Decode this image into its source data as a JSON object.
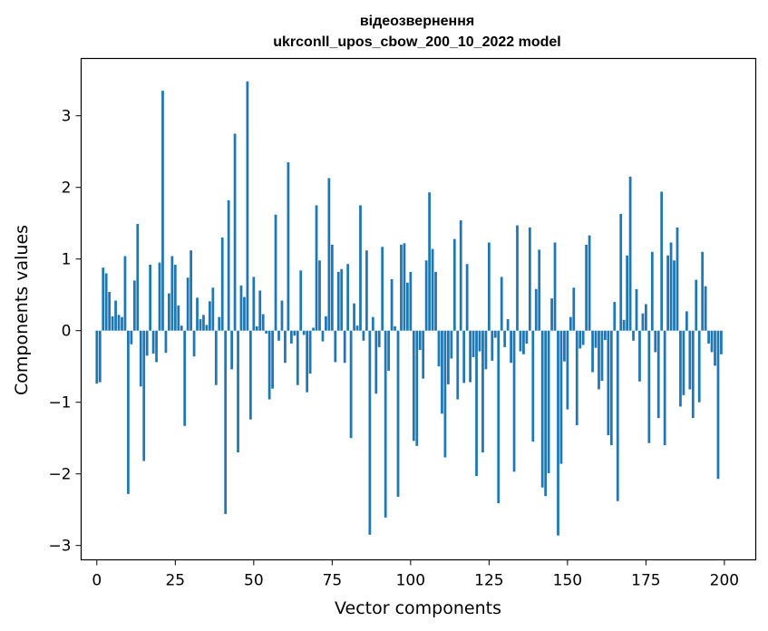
{
  "chart_data": {
    "type": "bar",
    "title_line1": "відеозвернення",
    "title_line2": "ukrconll_upos_cbow_200_10_2022 model",
    "xlabel": "Vector components",
    "ylabel": "Components values",
    "xlim": [
      -5,
      210
    ],
    "ylim": [
      -3.2,
      3.8
    ],
    "xticks": [
      0,
      25,
      50,
      75,
      100,
      125,
      150,
      175,
      200
    ],
    "yticks": [
      -3,
      -2,
      -1,
      0,
      1,
      2,
      3
    ],
    "grid": false,
    "legend": "none",
    "bar_color": "#1f77b4",
    "values": [
      -0.74,
      -0.72,
      0.88,
      0.8,
      0.54,
      0.2,
      0.42,
      0.22,
      0.19,
      1.04,
      -2.28,
      -0.19,
      0.7,
      1.49,
      -0.78,
      -1.82,
      -0.35,
      0.92,
      -0.32,
      -0.44,
      0.95,
      3.35,
      -0.31,
      0.52,
      1.04,
      0.92,
      0.35,
      0.07,
      -1.33,
      0.74,
      1.12,
      -0.36,
      0.46,
      0.16,
      0.22,
      0.08,
      0.41,
      0.6,
      -0.76,
      0.19,
      1.3,
      -2.56,
      1.82,
      -0.54,
      2.75,
      -1.7,
      0.63,
      0.47,
      3.48,
      -1.24,
      0.75,
      0.06,
      0.56,
      0.23,
      -0.04,
      -0.96,
      -0.81,
      1.62,
      -0.14,
      0.42,
      -0.45,
      2.35,
      -0.18,
      -0.07,
      -0.76,
      0.84,
      -0.06,
      -0.86,
      -0.6,
      0.04,
      1.75,
      0.98,
      -0.15,
      0.2,
      2.13,
      1.2,
      -0.44,
      0.82,
      0.86,
      -0.45,
      0.93,
      -1.5,
      0.38,
      0.07,
      1.75,
      -0.14,
      1.12,
      -2.85,
      0.19,
      -0.88,
      -0.23,
      1.17,
      -2.61,
      -0.56,
      0.72,
      0.06,
      -2.32,
      1.2,
      1.22,
      0.67,
      0.82,
      -1.54,
      -1.61,
      -0.27,
      -0.67,
      0.98,
      1.93,
      1.14,
      0.82,
      -0.5,
      -1.16,
      -1.77,
      -0.75,
      -0.39,
      1.28,
      -0.96,
      1.54,
      -0.73,
      0.93,
      -0.72,
      -0.37,
      -2.03,
      -0.29,
      -1.7,
      -0.54,
      1.23,
      -0.42,
      -0.1,
      -2.41,
      0.75,
      -0.23,
      0.16,
      -0.45,
      -1.97,
      1.47,
      -0.29,
      -0.33,
      -0.18,
      1.44,
      -1.55,
      0.58,
      1.13,
      -2.19,
      -2.31,
      -1.99,
      0.45,
      1.23,
      -2.86,
      -1.86,
      -0.43,
      -1.1,
      0.19,
      0.6,
      -1.32,
      -0.25,
      -0.2,
      1.2,
      1.33,
      -0.58,
      -0.24,
      -0.82,
      -0.7,
      -0.13,
      -1.46,
      -1.6,
      0.4,
      -2.38,
      1.63,
      0.15,
      1.05,
      2.15,
      -0.14,
      0.58,
      -0.71,
      0.24,
      0.37,
      -1.57,
      1.1,
      -0.3,
      -1.22,
      1.94,
      -1.6,
      1.05,
      1.23,
      0.98,
      1.44,
      -1.06,
      -0.9,
      0.27,
      -0.82,
      -1.22,
      0.71,
      -1.0,
      1.1,
      0.62,
      -0.18,
      -0.3,
      -0.49,
      -2.07,
      -0.33
    ]
  }
}
